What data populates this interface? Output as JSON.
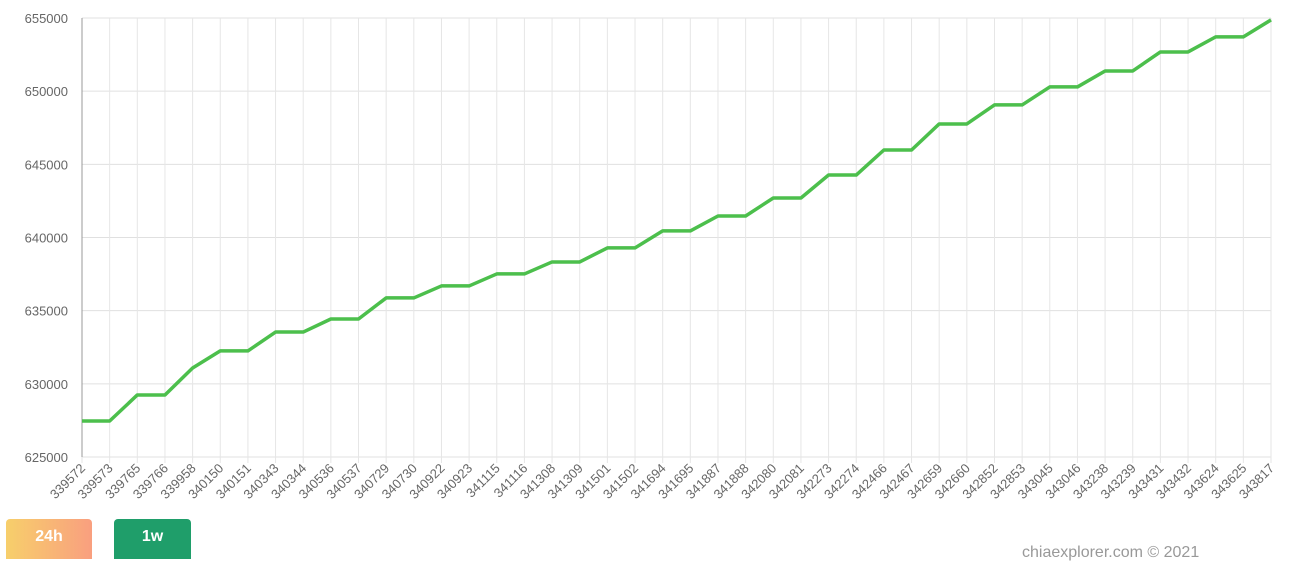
{
  "chart_data": {
    "type": "line",
    "categories": [
      "339572",
      "339573",
      "339765",
      "339766",
      "339958",
      "340150",
      "340151",
      "340343",
      "340344",
      "340536",
      "340537",
      "340729",
      "340730",
      "340922",
      "340923",
      "341115",
      "341116",
      "341308",
      "341309",
      "341501",
      "341502",
      "341694",
      "341695",
      "341887",
      "341888",
      "342080",
      "342081",
      "342273",
      "342274",
      "342466",
      "342467",
      "342659",
      "342660",
      "342852",
      "342853",
      "343045",
      "343046",
      "343238",
      "343239",
      "343431",
      "343432",
      "343624",
      "343625",
      "343817"
    ],
    "values": [
      627460,
      627460,
      629240,
      629240,
      631080,
      632250,
      632250,
      633540,
      633540,
      634430,
      634430,
      635870,
      635870,
      636690,
      636690,
      637510,
      637510,
      638330,
      638330,
      639290,
      639290,
      640450,
      640450,
      641470,
      641470,
      642700,
      642700,
      644270,
      644270,
      645980,
      645980,
      647760,
      647760,
      649060,
      649060,
      650290,
      650290,
      651380,
      651380,
      652680,
      652680,
      653710,
      653710,
      654870
    ],
    "color": "#4cbf4c",
    "ylim": [
      625000,
      655000
    ],
    "yticks": [
      625000,
      630000,
      635000,
      640000,
      645000,
      650000,
      655000
    ],
    "grid": true
  },
  "controls": {
    "buttons": [
      "24h",
      "1w"
    ]
  },
  "footer": "chiaexplorer.com © 2021"
}
